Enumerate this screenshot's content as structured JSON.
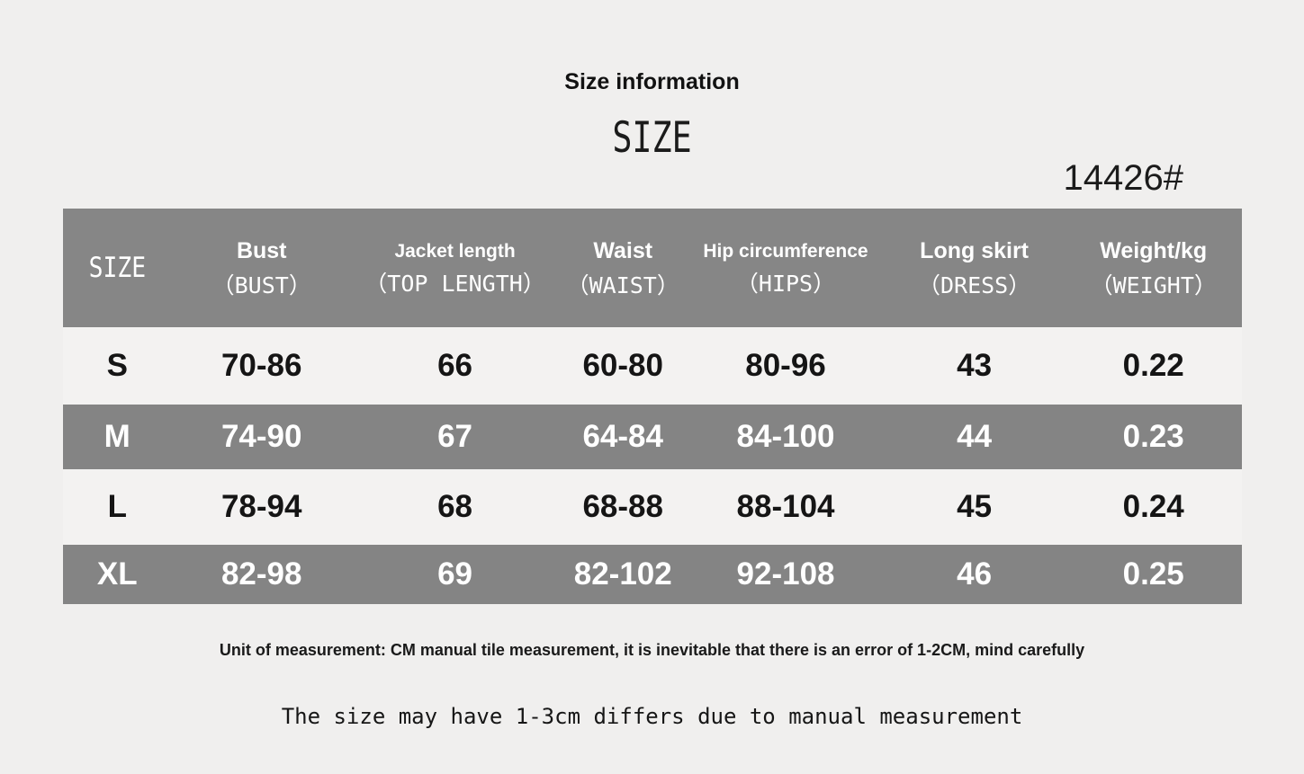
{
  "page": {
    "title": "Size information",
    "subtitle": "SIZE",
    "style_number": "14426#",
    "note_bold": "Unit of measurement: CM manual tile measurement, it is inevitable that there is an error of 1-2CM, mind carefully",
    "note_mono": "The size may have 1-3cm differs due to manual measurement"
  },
  "chart_data": {
    "type": "table",
    "title": "Size information",
    "unit": "CM",
    "columns": [
      {
        "label": "SIZE",
        "sub": ""
      },
      {
        "label": "Bust",
        "sub": "（BUST）"
      },
      {
        "label": "Jacket length",
        "sub": "（TOP LENGTH）"
      },
      {
        "label": "Waist",
        "sub": "（WAIST）"
      },
      {
        "label": "Hip circumference",
        "sub": "（HIPS）"
      },
      {
        "label": "Long skirt",
        "sub": "（DRESS）"
      },
      {
        "label": "Weight/kg",
        "sub": "（WEIGHT）"
      }
    ],
    "rows": [
      {
        "size": "S",
        "values": [
          "70-86",
          "66",
          "60-80",
          "80-96",
          "43",
          "0.22"
        ],
        "shaded": false
      },
      {
        "size": "M",
        "values": [
          "74-90",
          "67",
          "64-84",
          "84-100",
          "44",
          "0.23"
        ],
        "shaded": true
      },
      {
        "size": "L",
        "values": [
          "78-94",
          "68",
          "68-88",
          "88-104",
          "45",
          "0.24"
        ],
        "shaded": false
      },
      {
        "size": "XL",
        "values": [
          "82-98",
          "69",
          "82-102",
          "92-108",
          "46",
          "0.25"
        ],
        "shaded": true
      }
    ]
  },
  "colors": {
    "page_bg": "#f0efee",
    "header_bg": "#868686",
    "shaded_row_bg": "#848484",
    "light_row_bg": "#f3f2f1",
    "dark_text": "#151515",
    "white_text": "#ffffff"
  }
}
